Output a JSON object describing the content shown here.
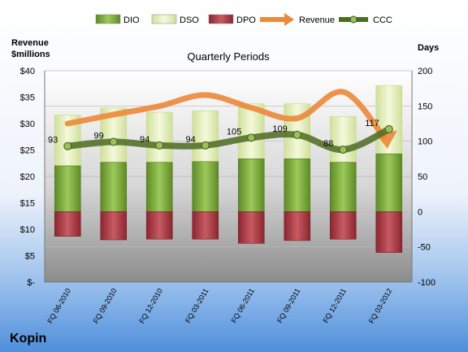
{
  "company": "Kopin",
  "chart_data": {
    "type": "bar",
    "title": "Quarterly Periods",
    "y_left_label_line1": "Revenue",
    "y_left_label_line2": "$millions",
    "y_right_label": "Days",
    "categories": [
      "FQ 06-2010",
      "FQ 09-2010",
      "FQ 12-2010",
      "FQ 03-2011",
      "FQ 06-2011",
      "FQ 09-2011",
      "FQ 12-2011",
      "FQ 03-2012"
    ],
    "y_left_ticks": [
      "$-",
      "$5",
      "$10",
      "$15",
      "$20",
      "$25",
      "$30",
      "$35",
      "$40"
    ],
    "y_right_ticks": [
      "-100",
      "-50",
      "0",
      "50",
      "100",
      "150",
      "200"
    ],
    "ylim_days": [
      -100,
      200
    ],
    "ylim_revenue": [
      0,
      40
    ],
    "legend": [
      {
        "name": "DIO",
        "kind": "bar",
        "color": "#7eac3c"
      },
      {
        "name": "DSO",
        "kind": "bar",
        "color": "#e6f2c2"
      },
      {
        "name": "DPO",
        "kind": "bar",
        "color": "#b04048"
      },
      {
        "name": "Revenue",
        "kind": "arrow",
        "color": "#ec8a3c"
      },
      {
        "name": "CCC",
        "kind": "line",
        "color": "#5a7a2a"
      }
    ],
    "series": [
      {
        "name": "DIO",
        "unit": "days",
        "values": [
          65,
          70,
          70,
          71,
          75,
          75,
          70,
          82
        ]
      },
      {
        "name": "DSO",
        "unit": "days",
        "values": [
          72,
          77,
          71,
          72,
          78,
          78,
          65,
          97
        ]
      },
      {
        "name": "DPO",
        "unit": "days",
        "values": [
          -35,
          -40,
          -39,
          -39,
          -45,
          -41,
          -39,
          -58
        ]
      },
      {
        "name": "Revenue",
        "unit": "$M",
        "values": [
          30.0,
          31.7,
          33.3,
          35.4,
          33.0,
          31.0,
          36.0,
          26.5
        ]
      },
      {
        "name": "CCC",
        "unit": "days",
        "values": [
          93,
          99,
          94,
          94,
          105,
          109,
          88,
          117
        ]
      }
    ],
    "ccc_labels": [
      "93",
      "99",
      "94",
      "94",
      "105",
      "109",
      "88",
      "117"
    ]
  }
}
